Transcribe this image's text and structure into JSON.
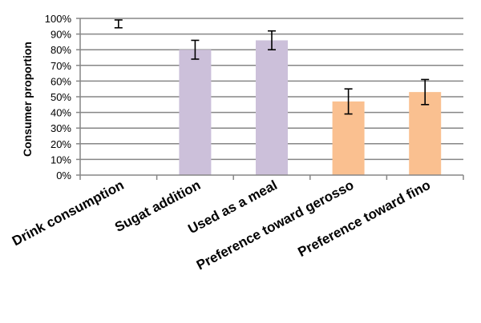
{
  "chart_data": {
    "type": "bar",
    "title": "",
    "xlabel": "",
    "ylabel": "Consumer proportion",
    "ylim": [
      0,
      100
    ],
    "yticks": [
      "0%",
      "10%",
      "20%",
      "30%",
      "40%",
      "50%",
      "60%",
      "70%",
      "80%",
      "90%",
      "100%"
    ],
    "grid": true,
    "legend": "none",
    "categories": [
      "Drink consumption",
      "Sugat addition",
      "Used as a meal",
      "Preference toward gerosso",
      "Preference toward fino"
    ],
    "values": [
      null,
      80,
      86,
      47,
      53
    ],
    "error_points": [
      96,
      80,
      86,
      47,
      53
    ],
    "error_low": [
      94,
      74,
      80,
      39,
      45
    ],
    "error_high": [
      99,
      86,
      92,
      55,
      61
    ],
    "bar_colors": [
      "#ffffff",
      "#ccc0da",
      "#ccc0da",
      "#fac090",
      "#fac090"
    ]
  }
}
